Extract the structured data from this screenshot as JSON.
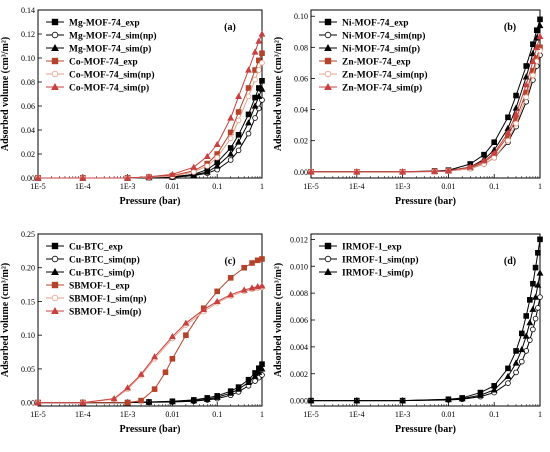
{
  "chart_data": [
    {
      "type": "line",
      "panel_label": "(a)",
      "xlabel": "Pressure (bar)",
      "ylabel": "Adsorbed volume (cm³/m²)",
      "xscale": "log",
      "xlim": [
        1e-05,
        1
      ],
      "ylim": [
        0,
        0.14
      ],
      "xticks": [
        1e-05,
        0.0001,
        0.001,
        0.01,
        0.1,
        1
      ],
      "xtick_labels": [
        "1E-5",
        "1E-4",
        "1E-3",
        "0.01",
        "0.1",
        "1"
      ],
      "yticks": [
        0.0,
        0.02,
        0.04,
        0.06,
        0.08,
        0.1,
        0.12,
        0.14
      ],
      "ytick_labels": [
        "0.00",
        "0.02",
        "0.04",
        "0.06",
        "0.08",
        "0.10",
        "0.12",
        "0.14"
      ],
      "legend_position": "top-left",
      "series": [
        {
          "name": "Mg-MOF-74_exp",
          "color": "#000000",
          "marker": "square",
          "fill": "filled",
          "x": [
            1e-05,
            0.0001,
            0.001,
            0.003,
            0.01,
            0.03,
            0.06,
            0.1,
            0.2,
            0.3,
            0.5,
            0.7,
            0.85,
            1.0
          ],
          "y": [
            0,
            0,
            0,
            0.0005,
            0.001,
            0.003,
            0.007,
            0.013,
            0.025,
            0.036,
            0.053,
            0.067,
            0.075,
            0.081
          ]
        },
        {
          "name": "Mg-MOF-74_sim(np)",
          "color": "#000000",
          "marker": "circle",
          "fill": "open",
          "x": [
            1e-05,
            0.0001,
            0.001,
            0.003,
            0.01,
            0.03,
            0.06,
            0.1,
            0.2,
            0.3,
            0.5,
            0.7,
            0.85,
            1.0
          ],
          "y": [
            0,
            0,
            0,
            0.0003,
            0.0006,
            0.002,
            0.004,
            0.007,
            0.015,
            0.023,
            0.037,
            0.05,
            0.058,
            0.065
          ]
        },
        {
          "name": "Mg-MOF-74_sim(p)",
          "color": "#000000",
          "marker": "triangle",
          "fill": "filled",
          "x": [
            1e-05,
            0.0001,
            0.001,
            0.003,
            0.01,
            0.03,
            0.06,
            0.1,
            0.2,
            0.3,
            0.5,
            0.7,
            0.85,
            1.0
          ],
          "y": [
            0,
            0,
            0,
            0.0004,
            0.0008,
            0.0025,
            0.005,
            0.01,
            0.02,
            0.03,
            0.046,
            0.06,
            0.068,
            0.074
          ]
        },
        {
          "name": "Co-MOF-74_exp",
          "color": "#b5432a",
          "marker": "square",
          "fill": "filled",
          "x": [
            1e-05,
            0.0001,
            0.001,
            0.003,
            0.01,
            0.03,
            0.06,
            0.1,
            0.2,
            0.3,
            0.5,
            0.7,
            0.85,
            1.0
          ],
          "y": [
            0,
            0,
            0,
            0.0008,
            0.002,
            0.006,
            0.012,
            0.02,
            0.038,
            0.055,
            0.075,
            0.09,
            0.098,
            0.104
          ]
        },
        {
          "name": "Co-MOF-74_sim(np)",
          "color": "#e8a08a",
          "marker": "circle",
          "fill": "open",
          "x": [
            1e-05,
            0.0001,
            0.001,
            0.003,
            0.01,
            0.03,
            0.06,
            0.1,
            0.2,
            0.3,
            0.5,
            0.7,
            0.85,
            1.0
          ],
          "y": [
            0,
            0,
            0,
            0.0006,
            0.0015,
            0.005,
            0.01,
            0.017,
            0.033,
            0.048,
            0.068,
            0.082,
            0.09,
            0.096
          ]
        },
        {
          "name": "Co-MOF-74_sim(p)",
          "color": "#c84040",
          "marker": "triangle",
          "fill": "filled",
          "x": [
            1e-05,
            0.0001,
            0.001,
            0.003,
            0.01,
            0.03,
            0.06,
            0.1,
            0.2,
            0.3,
            0.5,
            0.7,
            0.85,
            1.0
          ],
          "y": [
            0,
            0,
            0,
            0.001,
            0.003,
            0.009,
            0.018,
            0.028,
            0.05,
            0.068,
            0.09,
            0.105,
            0.114,
            0.12
          ]
        }
      ]
    },
    {
      "type": "line",
      "panel_label": "(b)",
      "xlabel": "Pressure (bar)",
      "ylabel": "Adsorbed volume (cm³/m²)",
      "xscale": "log",
      "xlim": [
        1e-05,
        1
      ],
      "ylim": [
        -0.004,
        0.104
      ],
      "xticks": [
        1e-05,
        0.0001,
        0.001,
        0.01,
        0.1,
        1
      ],
      "xtick_labels": [
        "1E-5",
        "1E-4",
        "1E-3",
        "0.01",
        "0.1",
        "1"
      ],
      "yticks": [
        0.0,
        0.02,
        0.04,
        0.06,
        0.08,
        0.1
      ],
      "ytick_labels": [
        "0.00",
        "0.02",
        "0.04",
        "0.06",
        "0.08",
        "0.10"
      ],
      "legend_position": "top-left",
      "series": [
        {
          "name": "Ni-MOF-74_exp",
          "color": "#000000",
          "marker": "square",
          "fill": "filled",
          "x": [
            1e-05,
            0.0001,
            0.001,
            0.005,
            0.01,
            0.03,
            0.06,
            0.1,
            0.2,
            0.3,
            0.5,
            0.7,
            0.85,
            1.0
          ],
          "y": [
            0,
            0,
            0,
            0.0005,
            0.001,
            0.005,
            0.011,
            0.019,
            0.035,
            0.049,
            0.068,
            0.082,
            0.091,
            0.098
          ]
        },
        {
          "name": "Ni-MOF-74_sim(np)",
          "color": "#000000",
          "marker": "circle",
          "fill": "open",
          "x": [
            1e-05,
            0.0001,
            0.001,
            0.005,
            0.01,
            0.03,
            0.06,
            0.1,
            0.2,
            0.3,
            0.5,
            0.7,
            0.85,
            1.0
          ],
          "y": [
            0,
            0,
            0,
            0.0002,
            0.0005,
            0.002,
            0.005,
            0.009,
            0.019,
            0.029,
            0.045,
            0.059,
            0.068,
            0.075
          ]
        },
        {
          "name": "Ni-MOF-74_sim(p)",
          "color": "#000000",
          "marker": "triangle",
          "fill": "filled",
          "x": [
            1e-05,
            0.0001,
            0.001,
            0.005,
            0.01,
            0.03,
            0.06,
            0.1,
            0.2,
            0.3,
            0.5,
            0.7,
            0.85,
            1.0
          ],
          "y": [
            0,
            0,
            0,
            0.0003,
            0.0008,
            0.003,
            0.008,
            0.014,
            0.028,
            0.041,
            0.061,
            0.076,
            0.086,
            0.094
          ]
        },
        {
          "name": "Zn-MOF-74_exp",
          "color": "#b5432a",
          "marker": "square",
          "fill": "filled",
          "x": [
            1e-05,
            0.0001,
            0.001,
            0.005,
            0.01,
            0.03,
            0.06,
            0.1,
            0.2,
            0.3,
            0.5,
            0.7,
            0.85,
            1.0
          ],
          "y": [
            0,
            0,
            0,
            0.0002,
            0.0006,
            0.0025,
            0.006,
            0.011,
            0.023,
            0.034,
            0.051,
            0.065,
            0.073,
            0.08
          ]
        },
        {
          "name": "Zn-MOF-74_sim(np)",
          "color": "#e8a08a",
          "marker": "circle",
          "fill": "open",
          "x": [
            1e-05,
            0.0001,
            0.001,
            0.005,
            0.01,
            0.03,
            0.06,
            0.1,
            0.2,
            0.3,
            0.5,
            0.7,
            0.85,
            1.0
          ],
          "y": [
            0,
            0,
            0,
            0.0002,
            0.0005,
            0.002,
            0.005,
            0.009,
            0.02,
            0.031,
            0.048,
            0.062,
            0.071,
            0.078
          ]
        },
        {
          "name": "Zn-MOF-74_sim(p)",
          "color": "#c84040",
          "marker": "triangle",
          "fill": "filled",
          "x": [
            1e-05,
            0.0001,
            0.001,
            0.005,
            0.01,
            0.03,
            0.06,
            0.1,
            0.2,
            0.3,
            0.5,
            0.7,
            0.85,
            1.0
          ],
          "y": [
            0,
            0,
            0,
            0.0003,
            0.0007,
            0.003,
            0.007,
            0.012,
            0.025,
            0.037,
            0.056,
            0.071,
            0.08,
            0.087
          ]
        }
      ]
    },
    {
      "type": "line",
      "panel_label": "(c)",
      "xlabel": "Pressure (bar)",
      "ylabel": "Adsorbed volume (cm³/m²)",
      "xscale": "log",
      "xlim": [
        1e-05,
        1
      ],
      "ylim": [
        -0.005,
        0.25
      ],
      "xticks": [
        1e-05,
        0.0001,
        0.001,
        0.01,
        0.1,
        1
      ],
      "xtick_labels": [
        "1E-5",
        "1E-4",
        "1E-3",
        "0.01",
        "0.1",
        "1"
      ],
      "yticks": [
        0.0,
        0.05,
        0.1,
        0.15,
        0.2,
        0.25
      ],
      "ytick_labels": [
        "0.00",
        "0.05",
        "0.10",
        "0.15",
        "0.20",
        "0.25"
      ],
      "legend_position": "top-left",
      "series": [
        {
          "name": "Cu-BTC_exp",
          "color": "#000000",
          "marker": "square",
          "fill": "filled",
          "x": [
            1e-05,
            0.0001,
            0.001,
            0.003,
            0.01,
            0.03,
            0.06,
            0.1,
            0.2,
            0.3,
            0.5,
            0.7,
            0.85,
            1.0
          ],
          "y": [
            0,
            0,
            0,
            0.001,
            0.002,
            0.004,
            0.007,
            0.01,
            0.017,
            0.023,
            0.034,
            0.044,
            0.051,
            0.057
          ]
        },
        {
          "name": "Cu-BTC_sim(np)",
          "color": "#000000",
          "marker": "circle",
          "fill": "open",
          "x": [
            1e-05,
            0.0001,
            0.001,
            0.003,
            0.01,
            0.03,
            0.06,
            0.1,
            0.2,
            0.3,
            0.5,
            0.7,
            0.85,
            1.0
          ],
          "y": [
            0,
            0,
            0,
            0.0005,
            0.001,
            0.002,
            0.004,
            0.006,
            0.011,
            0.016,
            0.025,
            0.032,
            0.037,
            0.041
          ]
        },
        {
          "name": "Cu-BTC_sim(p)",
          "color": "#000000",
          "marker": "triangle",
          "fill": "filled",
          "x": [
            1e-05,
            0.0001,
            0.001,
            0.003,
            0.01,
            0.03,
            0.06,
            0.1,
            0.2,
            0.3,
            0.5,
            0.7,
            0.85,
            1.0
          ],
          "y": [
            0,
            0,
            0,
            0.0007,
            0.0015,
            0.003,
            0.005,
            0.008,
            0.014,
            0.02,
            0.03,
            0.039,
            0.045,
            0.05
          ]
        },
        {
          "name": "SBMOF-1_exp",
          "color": "#b5432a",
          "marker": "square",
          "fill": "filled",
          "x": [
            1e-05,
            0.0001,
            0.001,
            0.002,
            0.004,
            0.007,
            0.01,
            0.02,
            0.05,
            0.1,
            0.2,
            0.4,
            0.6,
            0.8,
            1.0
          ],
          "y": [
            0,
            0,
            0,
            0.003,
            0.02,
            0.045,
            0.065,
            0.1,
            0.14,
            0.165,
            0.185,
            0.2,
            0.207,
            0.211,
            0.213
          ]
        },
        {
          "name": "SBMOF-1_sim(np)",
          "color": "#e8a08a",
          "marker": "circle",
          "fill": "open",
          "x": [
            1e-05,
            0.0001,
            0.0005,
            0.001,
            0.002,
            0.004,
            0.01,
            0.02,
            0.05,
            0.1,
            0.2,
            0.4,
            0.6,
            0.8,
            1.0
          ],
          "y": [
            0,
            0,
            0.005,
            0.02,
            0.04,
            0.065,
            0.095,
            0.115,
            0.135,
            0.148,
            0.158,
            0.165,
            0.168,
            0.17,
            0.171
          ]
        },
        {
          "name": "SBMOF-1_sim(p)",
          "color": "#c84040",
          "marker": "triangle",
          "fill": "filled",
          "x": [
            1e-05,
            0.0001,
            0.0005,
            0.001,
            0.002,
            0.004,
            0.01,
            0.02,
            0.05,
            0.1,
            0.2,
            0.4,
            0.6,
            0.8,
            1.0
          ],
          "y": [
            0,
            0,
            0.006,
            0.022,
            0.042,
            0.068,
            0.098,
            0.118,
            0.138,
            0.15,
            0.16,
            0.167,
            0.17,
            0.172,
            0.173
          ]
        }
      ]
    },
    {
      "type": "line",
      "panel_label": "(d)",
      "xlabel": "Pressure (bar)",
      "ylabel": "Adsorbed volume (cm³/m²)",
      "xscale": "log",
      "xlim": [
        1e-05,
        1
      ],
      "ylim": [
        -0.0004,
        0.0124
      ],
      "xticks": [
        1e-05,
        0.0001,
        0.001,
        0.01,
        0.1,
        1
      ],
      "xtick_labels": [
        "1E-5",
        "1E-4",
        "1E-3",
        "0.01",
        "0.1",
        "1"
      ],
      "yticks": [
        0.0,
        0.002,
        0.004,
        0.006,
        0.008,
        0.01,
        0.012
      ],
      "ytick_labels": [
        "0.000",
        "0.002",
        "0.004",
        "0.006",
        "0.008",
        "0.010",
        "0.012"
      ],
      "legend_position": "top-left",
      "series": [
        {
          "name": "IRMOF-1_exp",
          "color": "#000000",
          "marker": "square",
          "fill": "filled",
          "x": [
            1e-05,
            0.0001,
            0.001,
            0.01,
            0.02,
            0.05,
            0.1,
            0.2,
            0.3,
            0.4,
            0.5,
            0.6,
            0.7,
            0.8,
            0.9,
            1.0
          ],
          "y": [
            0,
            0,
            0,
            0.0001,
            0.0002,
            0.0006,
            0.0011,
            0.0024,
            0.0037,
            0.005,
            0.0063,
            0.0075,
            0.0087,
            0.0099,
            0.011,
            0.012
          ]
        },
        {
          "name": "IRMOF-1_sim(np)",
          "color": "#000000",
          "marker": "circle",
          "fill": "open",
          "x": [
            1e-05,
            0.0001,
            0.001,
            0.01,
            0.02,
            0.05,
            0.1,
            0.2,
            0.3,
            0.4,
            0.5,
            0.6,
            0.7,
            0.8,
            0.9,
            1.0
          ],
          "y": [
            0,
            0,
            0,
            5e-05,
            0.0001,
            0.0003,
            0.0006,
            0.0013,
            0.0021,
            0.0029,
            0.0037,
            0.0045,
            0.0053,
            0.0061,
            0.0069,
            0.0077
          ]
        },
        {
          "name": "IRMOF-1_sim(p)",
          "color": "#000000",
          "marker": "triangle",
          "fill": "filled",
          "x": [
            1e-05,
            0.0001,
            0.001,
            0.01,
            0.02,
            0.05,
            0.1,
            0.2,
            0.3,
            0.4,
            0.5,
            0.6,
            0.7,
            0.8,
            0.9,
            1.0
          ],
          "y": [
            0,
            0,
            0,
            8e-05,
            0.00015,
            0.0004,
            0.0008,
            0.0018,
            0.0028,
            0.0038,
            0.0048,
            0.0058,
            0.0068,
            0.0077,
            0.0086,
            0.0095
          ]
        }
      ]
    }
  ]
}
